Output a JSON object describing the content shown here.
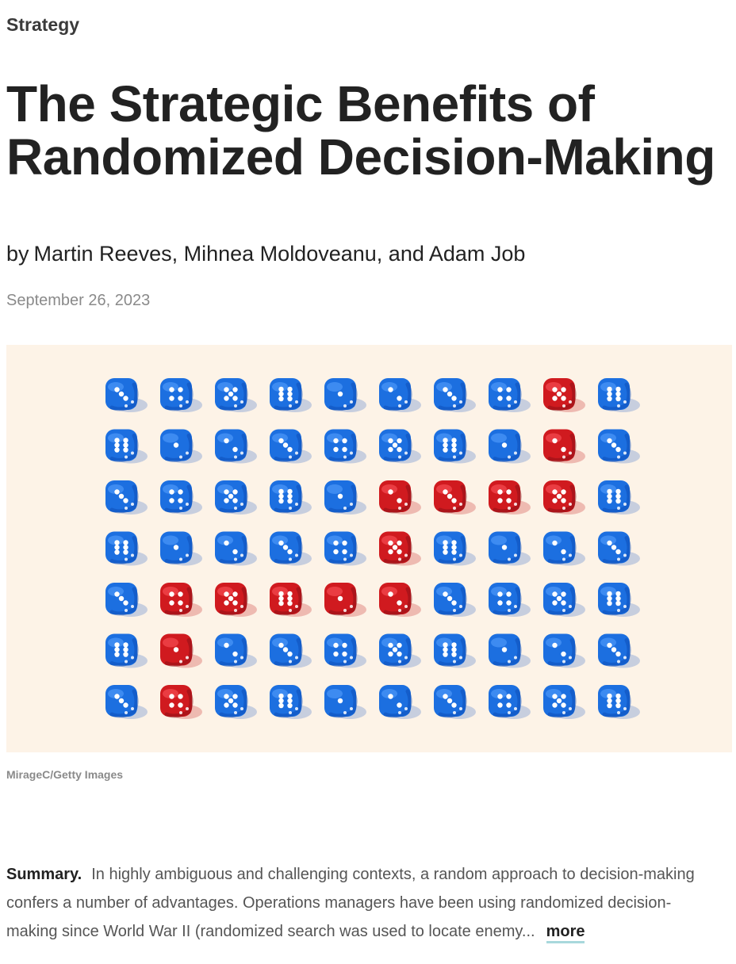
{
  "topic": {
    "label": "Strategy"
  },
  "article": {
    "title": "The Strategic Benefits of Randomized Decision-Making",
    "byline_prefix": "by",
    "authors": [
      "Martin Reeves",
      "Mihnea Moldoveanu",
      "Adam Job"
    ],
    "separator_1": ", ",
    "separator_2": ", and ",
    "date": "September 26, 2023"
  },
  "hero": {
    "credit": "MirageC/Getty Images",
    "background_color": "#fdf3e7",
    "dice_colors": {
      "blue": "#1c6fe0",
      "red": "#d01a1f"
    },
    "dice_grid": [
      [
        "blue",
        "blue",
        "blue",
        "blue",
        "blue",
        "blue",
        "blue",
        "blue",
        "red",
        "blue"
      ],
      [
        "blue",
        "blue",
        "blue",
        "blue",
        "blue",
        "blue",
        "blue",
        "blue",
        "red",
        "blue"
      ],
      [
        "blue",
        "blue",
        "blue",
        "blue",
        "blue",
        "red",
        "red",
        "red",
        "red",
        "blue"
      ],
      [
        "blue",
        "blue",
        "blue",
        "blue",
        "blue",
        "red",
        "blue",
        "blue",
        "blue",
        "blue"
      ],
      [
        "blue",
        "red",
        "red",
        "red",
        "red",
        "red",
        "blue",
        "blue",
        "blue",
        "blue"
      ],
      [
        "blue",
        "red",
        "blue",
        "blue",
        "blue",
        "blue",
        "blue",
        "blue",
        "blue",
        "blue"
      ],
      [
        "blue",
        "red",
        "blue",
        "blue",
        "blue",
        "blue",
        "blue",
        "blue",
        "blue",
        "blue"
      ]
    ]
  },
  "summary": {
    "label": "Summary.",
    "text": "In highly ambiguous and challenging contexts, a random approach to decision-making confers a number of advantages. Operations managers have been using randomized decision-making since World War II (randomized search was used to locate enemy...",
    "more_label": "more"
  }
}
